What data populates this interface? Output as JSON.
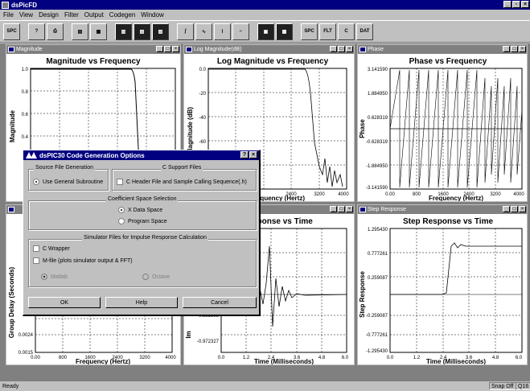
{
  "app": {
    "title": "dsPicFD"
  },
  "menu": [
    "File",
    "View",
    "Design",
    "Filter",
    "Output",
    "Codegen",
    "Window"
  ],
  "toolbar": [
    "SPC",
    "print",
    "open",
    "save",
    "graph1",
    "graph2",
    "graph3",
    "graph4",
    "graph5",
    "graph6",
    "graph7",
    "graph8",
    "graph9",
    "SPC",
    "FLT",
    "C",
    "DAT"
  ],
  "windows": {
    "magnitude": {
      "title": "Magnitude",
      "plot_title": "Magnitude vs Frequency",
      "ylabel": "Magnitude",
      "xlabel": "",
      "yticks": [
        "1.0",
        "0.8",
        "0.6",
        "0.4"
      ],
      "xticks": []
    },
    "logmag": {
      "title": "Log Magnitude(dB)",
      "plot_title": "Log Magnitude vs Frequency",
      "ylabel": "Magnitude (dB)",
      "xlabel": "Frequency (Hertz)",
      "yticks": [
        "0.0",
        "-20",
        "-40",
        "-60"
      ],
      "xticks": [
        "2400",
        "3200",
        "4000"
      ]
    },
    "phase": {
      "title": "Phase",
      "plot_title": "Phase vs Frequency",
      "ylabel": "Phase",
      "xlabel": "Frequency (Hertz)",
      "yticks": [
        "3.141590",
        "1.884950",
        "0.628319",
        "-0.628319",
        "-1.884950",
        "-3.141590"
      ],
      "xticks": [
        "0.00",
        "800",
        "1600",
        "2400",
        "3200",
        "4000"
      ]
    },
    "groupdelay": {
      "title": "",
      "plot_title": "",
      "ylabel": "Group Delay (Seconds)",
      "xlabel": "Frequency (Hertz)",
      "yticks": [
        "0.0024",
        "0.0015"
      ],
      "xticks": [
        "0.00",
        "800",
        "1600",
        "2400",
        "3200",
        "4000"
      ]
    },
    "impulse": {
      "title": "",
      "plot_title": "Response vs Time",
      "ylabel": "Im",
      "xlabel": "Time (Milliseconds)",
      "yticks": [
        "-0.583398",
        "-0.972327"
      ],
      "xticks": [
        "0.0",
        "1.2",
        "2.4",
        "3.6",
        "4.8",
        "6.0"
      ]
    },
    "step": {
      "title": "Step Response",
      "plot_title": "Step Response vs Time",
      "ylabel": "Step Response",
      "xlabel": "Time (Milliseconds)",
      "yticks": [
        "1.295430",
        "0.777261",
        "0.259087",
        "-0.259087",
        "-0.777261",
        "-1.295430"
      ],
      "xticks": [
        "0.0",
        "1.2",
        "2.4",
        "3.6",
        "4.8",
        "6.0"
      ]
    }
  },
  "dialog": {
    "title": "dsPIC30 Code Generation Options",
    "help_btn": "?",
    "close_btn": "×",
    "source_group": "Source File Generation",
    "source_option": "Use General Subroutine",
    "csupport_group": "C Support Files",
    "csupport_option": "C Header File  and Sample Calling Sequence(.h)",
    "coef_group": "Coefficient Space Selection",
    "coef_x": "X Data Space",
    "coef_p": "Program Space",
    "sim_group": "Simulator Files for Impulse Response Calculation",
    "sim_c": "C Wrapper",
    "sim_m": "M-file (plots simulator output & FFT)",
    "sim_matlab": "Matlab",
    "sim_octave": "Octave",
    "ok": "OK",
    "help": "Help",
    "cancel": "Cancel"
  },
  "status": {
    "text": "Ready",
    "snap": "Snap Off",
    "q": "Q16"
  }
}
